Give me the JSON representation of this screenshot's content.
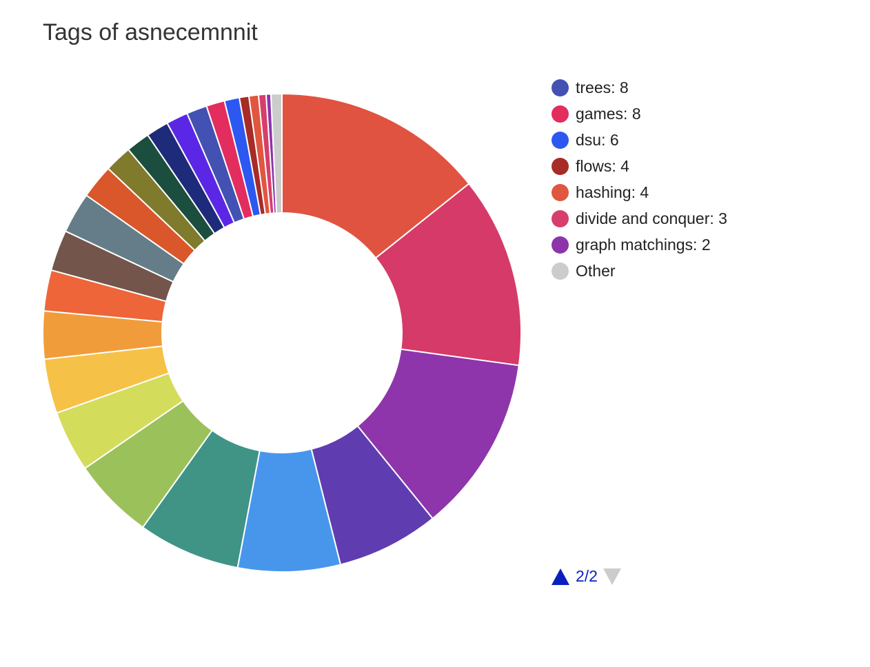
{
  "chart_data": {
    "type": "pie",
    "donut": true,
    "title": "Tags of asnecemnnit",
    "slices": [
      {
        "label": null,
        "value": 31,
        "color": "#e05340"
      },
      {
        "label": null,
        "value": 28,
        "color": "#d63a68"
      },
      {
        "label": null,
        "value": 26,
        "color": "#8e35ab"
      },
      {
        "label": null,
        "value": 15,
        "color": "#5f3db0"
      },
      {
        "label": null,
        "value": 15,
        "color": "#4796ec"
      },
      {
        "label": null,
        "value": 15,
        "color": "#3f9486"
      },
      {
        "label": null,
        "value": 12,
        "color": "#9bc25a"
      },
      {
        "label": null,
        "value": 9,
        "color": "#d4dc5b"
      },
      {
        "label": null,
        "value": 8,
        "color": "#f6c147"
      },
      {
        "label": null,
        "value": 7,
        "color": "#f19c3a"
      },
      {
        "label": null,
        "value": 6,
        "color": "#ed6539"
      },
      {
        "label": null,
        "value": 6,
        "color": "#73554b"
      },
      {
        "label": null,
        "value": 6,
        "color": "#647d89"
      },
      {
        "label": null,
        "value": 5,
        "color": "#d9572a"
      },
      {
        "label": null,
        "value": 4,
        "color": "#7f7a2c"
      },
      {
        "label": null,
        "value": 3.5,
        "color": "#1b4e3e"
      },
      {
        "label": null,
        "value": 3.3,
        "color": "#1e2a7a"
      },
      {
        "label": null,
        "value": 3.2,
        "color": "#5b27e6"
      },
      {
        "label": "trees: 8",
        "value": 3,
        "color": "#4351b2"
      },
      {
        "label": "games: 8",
        "value": 2.7,
        "color": "#e22d5e"
      },
      {
        "label": "dsu: 6",
        "value": 2.2,
        "color": "#2c58f1"
      },
      {
        "label": "flows: 4",
        "value": 1.4,
        "color": "#a72b27"
      },
      {
        "label": "hashing: 4",
        "value": 1.4,
        "color": "#e0563f"
      },
      {
        "label": "divide and conquer: 3",
        "value": 1.1,
        "color": "#d73e6c"
      },
      {
        "label": "graph matchings: 2",
        "value": 0.7,
        "color": "#8d34aa"
      },
      {
        "label": "Other",
        "value": 1.6,
        "color": "#cccccc"
      }
    ],
    "legend": {
      "placement": "right",
      "items": [
        {
          "text": "trees: 8",
          "color": "#4351b2"
        },
        {
          "text": "games: 8",
          "color": "#e22d5e"
        },
        {
          "text": "dsu: 6",
          "color": "#2c58f1"
        },
        {
          "text": "flows: 4",
          "color": "#a72b27"
        },
        {
          "text": "hashing: 4",
          "color": "#e0563f"
        },
        {
          "text": "divide and conquer: 3",
          "color": "#d73e6c"
        },
        {
          "text": "graph matchings: 2",
          "color": "#8d34aa"
        },
        {
          "text": "Other",
          "color": "#cccccc"
        }
      ]
    },
    "pager": {
      "text": "2/2",
      "prev_icon": "triangle-up-icon",
      "next_icon": "triangle-down-icon",
      "active_color": "#0a1fbf",
      "disabled_color": "#cccccc"
    }
  }
}
